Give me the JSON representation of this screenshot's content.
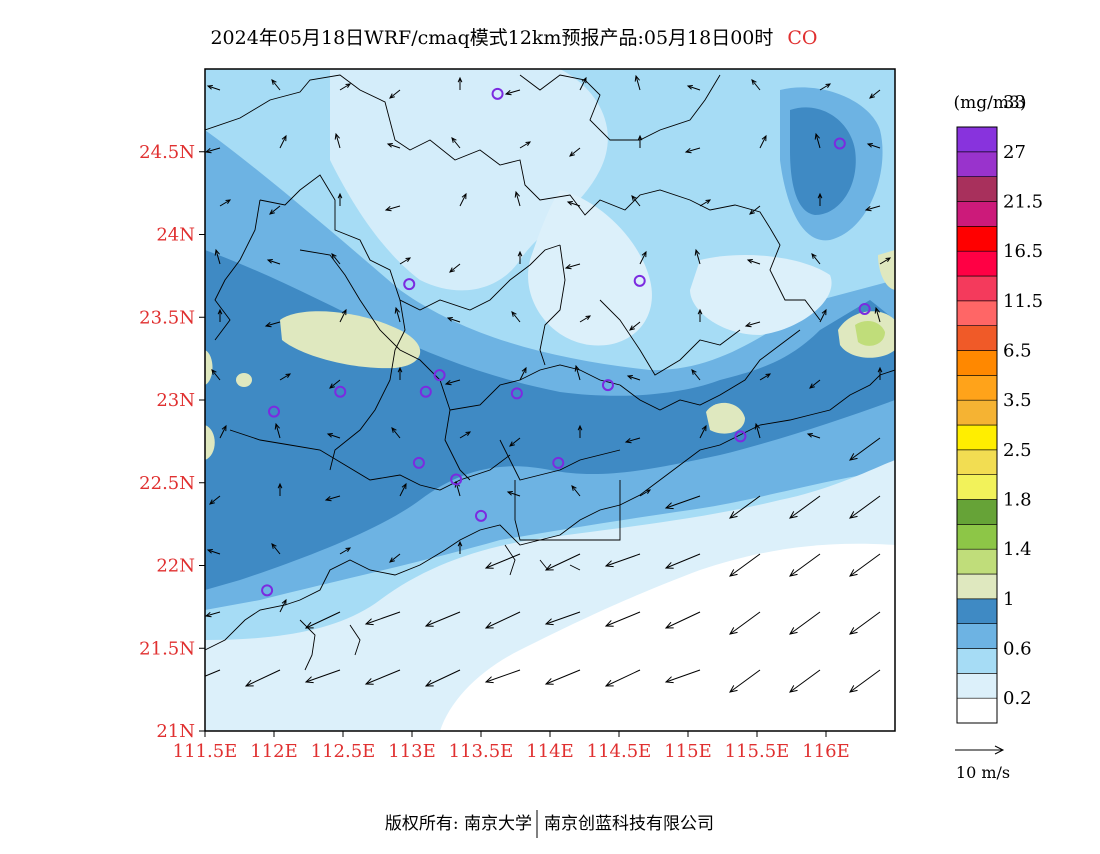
{
  "header": {
    "title": "2024年05月18日WRF/cmaq模式12km预报产品:05月18日00时",
    "species": "CO"
  },
  "map": {
    "lat_labels": [
      "24.5N",
      "24N",
      "23.5N",
      "23N",
      "22.5N",
      "22N",
      "21.5N",
      "21N"
    ],
    "lon_labels": [
      "111.5E",
      "112E",
      "112.5E",
      "113E",
      "113.5E",
      "114E",
      "114.5E",
      "115E",
      "115.5E",
      "116E"
    ],
    "lat_range": [
      21,
      25
    ],
    "lon_range": [
      111.5,
      116.5
    ],
    "station_marker": "purple-circle",
    "wind_vector_color": "#000000"
  },
  "legend": {
    "unit": "(mg/m3)",
    "levels": [
      "0.2",
      "0.6",
      "1",
      "1.4",
      "1.8",
      "2.5",
      "3.5",
      "6.5",
      "11.5",
      "16.5",
      "21.5",
      "27",
      "33"
    ],
    "colors": [
      "#ffffff",
      "#dcf0fa",
      "#a6dcf5",
      "#6db3e3",
      "#3f8ac4",
      "#dfe8bf",
      "#c0dd7a",
      "#8dc647",
      "#66a337",
      "#f2f25a",
      "#f2dd52",
      "#ffee00",
      "#f5b333",
      "#ffa31a",
      "#ff8800",
      "#f05a28",
      "#ff6666",
      "#f43a5c",
      "#ff0044",
      "#ff0000",
      "#cc1a7a",
      "#a8305c",
      "#9933cc",
      "#8833dd"
    ],
    "wind_ref_label": "10 m/s"
  },
  "footer": {
    "copyright": "版权所有: 南京大学",
    "company": "南京创蓝科技有限公司"
  }
}
